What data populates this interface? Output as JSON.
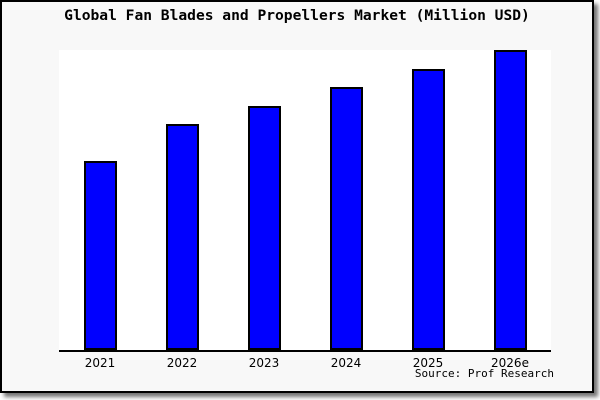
{
  "window": {
    "outer_background": "#ffffff",
    "card_background": "#f8f8f8",
    "border_color": "#000000",
    "shadow_color": "#808080"
  },
  "chart_data": {
    "type": "bar",
    "title": "Global Fan Blades and Propellers Market (Million USD)",
    "categories": [
      "2021",
      "2022",
      "2023",
      "2024",
      "2025",
      "2026e"
    ],
    "values": [
      62.9,
      75.2,
      81.5,
      87.7,
      93.7,
      100
    ],
    "values_note": "no y-axis scale shown; values are bar heights as percent of tallest (2026e) bar",
    "ylim": [
      0,
      100
    ],
    "xlabel": "",
    "ylabel": "",
    "grid": false,
    "legend": false,
    "bar_color": "#0000ff",
    "bar_border_color": "#000000",
    "axis_color": "#000000",
    "source": "Source: Prof Research"
  }
}
